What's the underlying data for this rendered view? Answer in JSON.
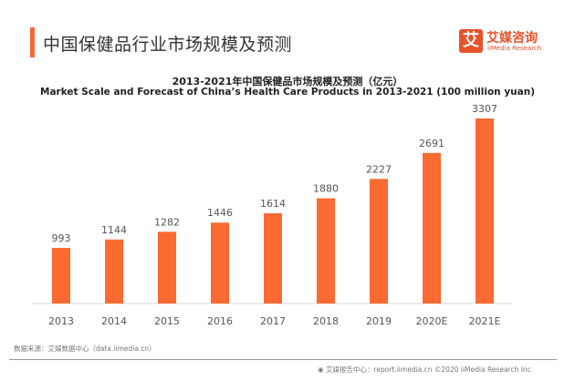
{
  "header": {
    "title": "中国保健品行业市场规模及预测"
  },
  "logo": {
    "icon_text": "艾",
    "name_cn": "艾媒咨询",
    "name_en": "iiMedia Research"
  },
  "colors": {
    "accent": "#f26b3a",
    "bar": "#fb6a31",
    "logo": "#e8522a",
    "text": "#555555"
  },
  "chart_data": {
    "type": "bar",
    "title": "2013-2021年中国保健品市场规模及预测（亿元）",
    "subtitle": "Market Scale and Forecast of China’s Health Care Products in 2013-2021 (100 million yuan)",
    "categories": [
      "2013",
      "2014",
      "2015",
      "2016",
      "2017",
      "2018",
      "2019",
      "2020E",
      "2021E"
    ],
    "values": [
      993,
      1144,
      1282,
      1446,
      1614,
      1880,
      2227,
      2691,
      3307
    ],
    "ylim": [
      0,
      3400
    ],
    "grid": false,
    "xlabel": "",
    "ylabel": ""
  },
  "footer": {
    "source": "数据来源：艾媒数据中心（data.iimedia.cn）",
    "copyright": "艾媒报告中心：report.iimedia.cn ©2020  iiMedia Research Inc"
  }
}
